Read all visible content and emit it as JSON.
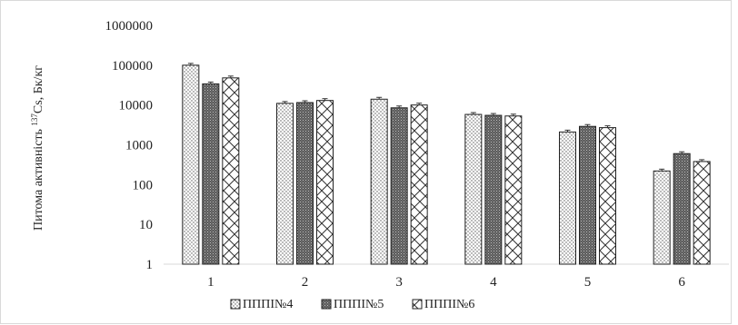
{
  "chart_data": {
    "type": "bar",
    "y_scale": "log",
    "categories": [
      "1",
      "2",
      "3",
      "4",
      "5",
      "6"
    ],
    "series": [
      {
        "name": "ПППІ№4",
        "values": [
          100000,
          11000,
          14000,
          5800,
          2100,
          220
        ],
        "pattern": "dots"
      },
      {
        "name": "ПППІ№5",
        "values": [
          34000,
          11500,
          8500,
          5500,
          2900,
          600
        ],
        "pattern": "dense"
      },
      {
        "name": "ПППІ№6",
        "values": [
          48000,
          13000,
          10000,
          5300,
          2700,
          380
        ],
        "pattern": "diagonal"
      }
    ],
    "error_bars": true,
    "ylim": [
      1,
      1000000
    ],
    "yticks": [
      "1",
      "10",
      "100",
      "1000",
      "10000",
      "100000",
      "1000000"
    ],
    "ylabel_prefix": "Питома активність ",
    "ylabel_sup": "137",
    "ylabel_suffix": "Cs, Бк/кг",
    "legend_position": "bottom",
    "grid": false,
    "bar_outline_color": "#222222"
  }
}
